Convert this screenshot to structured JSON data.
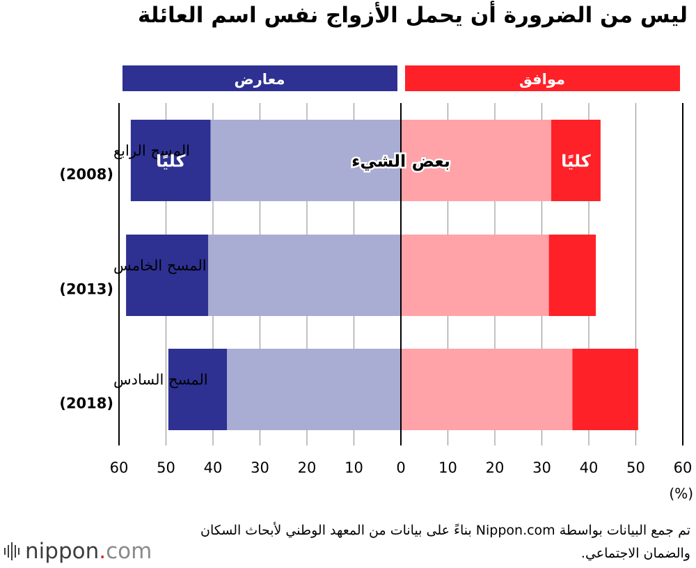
{
  "title": "ليس من الضرورة أن يحمل الأزواج نفس اسم العائلة",
  "header": {
    "oppose": "معارض",
    "agree": "موافق"
  },
  "colors": {
    "oppose_strong": "#2e3192",
    "oppose_some": "#a9acd3",
    "agree_some": "#ffa3a8",
    "agree_strong": "#ff2128",
    "grid": "#000000"
  },
  "chart_data": {
    "type": "bar",
    "orientation": "diverging-horizontal",
    "categories": [
      "المسح الرابع",
      "المسح الخامس",
      "المسح السادس"
    ],
    "years": [
      "(2008)",
      "(2013)",
      "(2018)"
    ],
    "series": [
      {
        "name": "كليًا",
        "side": "oppose",
        "values": [
          17,
          17.5,
          12.5
        ]
      },
      {
        "name": "بعض الشيء",
        "side": "oppose",
        "values": [
          40.5,
          41,
          37
        ]
      },
      {
        "name": "بعض الشيء",
        "side": "agree",
        "values": [
          32,
          31.5,
          36.5
        ]
      },
      {
        "name": "كليًا",
        "side": "agree",
        "values": [
          10.5,
          10,
          14
        ]
      }
    ],
    "xticks": [
      "60",
      "50",
      "40",
      "30",
      "20",
      "10",
      "0",
      "10",
      "20",
      "30",
      "40",
      "50",
      "60"
    ],
    "xlim": [
      -60,
      60
    ],
    "xunit": "(%)",
    "annotations": {
      "strong": "كليًا",
      "some": "بعض الشيء"
    }
  },
  "source": "تم جمع البيانات بواسطة Nippon.com بناءً على بيانات من المعهد الوطني لأبحاث السكان والضمان الاجتماعي.",
  "logo": {
    "main": "nippon",
    "dot": ".",
    "tld": "com"
  }
}
